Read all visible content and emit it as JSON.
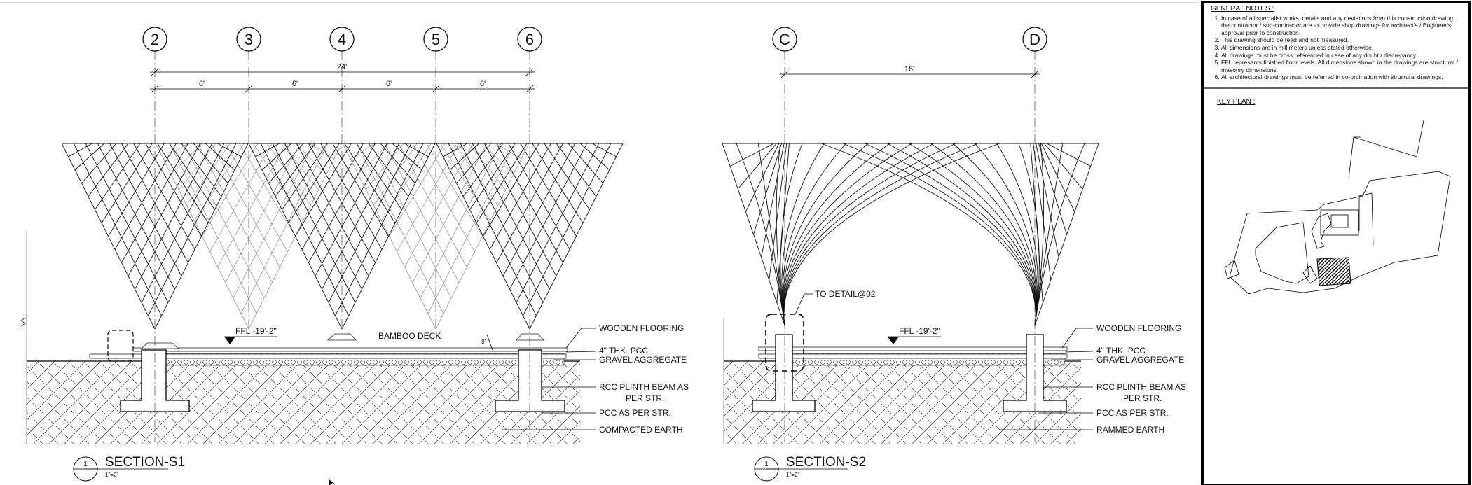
{
  "section1": {
    "grid_labels": [
      "2",
      "3",
      "4",
      "5",
      "6"
    ],
    "overall_dim": "24'",
    "bay_dims": [
      "6'",
      "6'",
      "6'",
      "6'"
    ],
    "level": "FFL -19'-2\"",
    "deck_label": "BAMBOO DECK",
    "thk_mark": "8\"",
    "callouts": [
      "WOODEN FLOORING",
      "4\" THK. PCC",
      "GRAVEL AGGREGATE",
      "RCC PLINTH BEAM AS",
      "PER STR.",
      "PCC AS PER STR.",
      "COMPACTED EARTH"
    ],
    "title_number": "1",
    "title": "SECTION-S1",
    "scale": "1\"=2'"
  },
  "section2": {
    "grid_labels": [
      "C",
      "D"
    ],
    "overall_dim": "16'",
    "level": "FFL -19'-2\"",
    "detail_ref": "TO DETAIL@02",
    "callouts": [
      "WOODEN FLOORING",
      "4\" THK. PCC",
      "GRAVEL AGGREGATE",
      "RCC PLINTH BEAM AS",
      "PER STR.",
      "PCC AS PER STR.",
      "RAMMED EARTH"
    ],
    "title_number": "1",
    "title": "SECTION-S2",
    "scale": "1\"=2'"
  },
  "general_notes": {
    "heading": "GENERAL NOTES :",
    "items": [
      "In case of all specialist works, details and any deviations from this construction drawing, the contractor / sub-contractor are to provide shop drawings for architect's / Engineer's approval prior to construction.",
      "This drawing should be read and not measured.",
      "All dimensions are in millimeters unless stated otherwise.",
      "All drawings must be cross referenced in case of any doubt / discrepancy.",
      "FFL represents finished floor levels. All dimensions shown in the drawings are structural / masonry dimensions.",
      "All architectural drawings must be referred in co-ordination with structural drawings."
    ]
  },
  "key_plan": {
    "label": "KEY PLAN :"
  },
  "icons": [
    "arrow-cursor-icon"
  ]
}
